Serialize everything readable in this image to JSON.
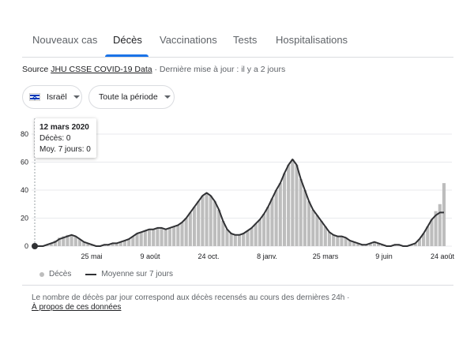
{
  "tabs": [
    {
      "label": "Nouveaux cas"
    },
    {
      "label": "Décès"
    },
    {
      "label": "Vaccinations"
    },
    {
      "label": "Tests"
    },
    {
      "label": "Hospitalisations"
    }
  ],
  "source": {
    "prefix": "Source",
    "link": "JHU CSSE COVID-19 Data",
    "updated": "· Dernière mise à jour : il y a 2 jours"
  },
  "filters": {
    "country": "Israël",
    "period": "Toute la période"
  },
  "tooltip": {
    "date": "12 mars 2020",
    "deaths": "Décès: 0",
    "avg": "Moy. 7 jours: 0"
  },
  "legend": {
    "bars": "Décès",
    "line": "Moyenne sur 7 jours"
  },
  "note": {
    "text": "Le nombre de décès par jour correspond aux décès recensés au cours des dernières 24h",
    "sep": "·",
    "about": "À propos de ces données"
  },
  "colors": {
    "accent": "#1a73e8",
    "bar": "#bdbdbd",
    "line": "#303134"
  },
  "chart_data": {
    "type": "bar",
    "ylim": [
      0,
      80
    ],
    "yticks": [
      0,
      20,
      40,
      60,
      80
    ],
    "xtick_labels": [
      "25 mai",
      "9 août",
      "24 oct.",
      "8 janv.",
      "25 mars",
      "9 juin",
      "24 août"
    ],
    "series": [
      {
        "name": "Décès",
        "kind": "bar",
        "values": [
          0,
          0,
          0,
          1,
          2,
          4,
          6,
          7,
          8,
          8,
          7,
          5,
          3,
          2,
          1,
          0,
          0,
          1,
          1,
          2,
          2,
          3,
          4,
          5,
          7,
          9,
          10,
          11,
          12,
          12,
          13,
          13,
          12,
          13,
          14,
          15,
          17,
          20,
          24,
          28,
          32,
          36,
          38,
          36,
          32,
          26,
          18,
          12,
          9,
          8,
          8,
          9,
          11,
          13,
          16,
          19,
          23,
          28,
          34,
          40,
          45,
          52,
          58,
          62,
          58,
          48,
          40,
          32,
          26,
          22,
          18,
          14,
          10,
          8,
          7,
          7,
          6,
          4,
          3,
          2,
          1,
          1,
          2,
          3,
          2,
          1,
          0,
          0,
          1,
          1,
          0,
          0,
          1,
          2,
          5,
          9,
          14,
          19,
          25,
          30,
          45
        ]
      },
      {
        "name": "Moyenne sur 7 jours",
        "kind": "line",
        "values": [
          0,
          0,
          0,
          1,
          2,
          3,
          5,
          6,
          7,
          8,
          7,
          5,
          3,
          2,
          1,
          0,
          0,
          1,
          1,
          2,
          2,
          3,
          4,
          5,
          7,
          9,
          10,
          11,
          12,
          12,
          13,
          13,
          12,
          13,
          14,
          15,
          17,
          20,
          24,
          28,
          32,
          36,
          38,
          36,
          32,
          26,
          18,
          12,
          9,
          8,
          8,
          9,
          11,
          13,
          16,
          19,
          23,
          28,
          34,
          40,
          45,
          52,
          58,
          62,
          58,
          48,
          40,
          32,
          26,
          22,
          18,
          14,
          10,
          8,
          7,
          7,
          6,
          4,
          3,
          2,
          1,
          1,
          2,
          3,
          2,
          1,
          0,
          0,
          1,
          1,
          0,
          0,
          1,
          2,
          5,
          9,
          14,
          19,
          22,
          24,
          24
        ]
      }
    ],
    "grid": true,
    "legend_position": "bottom-left"
  }
}
